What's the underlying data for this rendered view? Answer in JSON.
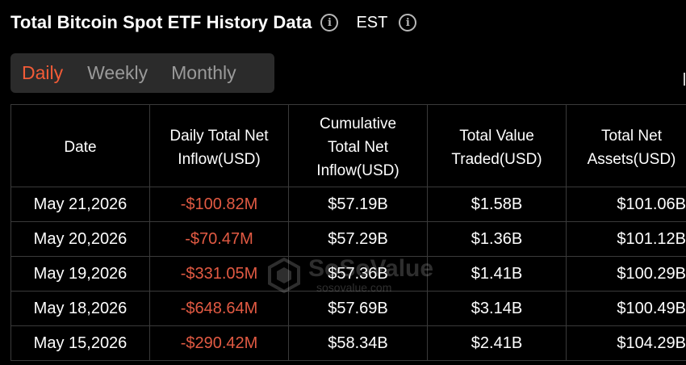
{
  "header": {
    "title": "Total Bitcoin Spot ETF History Data",
    "timezone": "EST"
  },
  "tabs": [
    {
      "label": "Daily",
      "active": true
    },
    {
      "label": "Weekly",
      "active": false
    },
    {
      "label": "Monthly",
      "active": false
    }
  ],
  "table": {
    "columns": [
      [
        "Date"
      ],
      [
        "Daily Total Net",
        "Inflow(USD)"
      ],
      [
        "Cumulative",
        "Total Net",
        "Inflow(USD)"
      ],
      [
        "Total Value",
        "Traded(USD)"
      ],
      [
        "Total Net",
        "Assets(USD)"
      ]
    ],
    "rows": [
      {
        "date": "May 21,2026",
        "daily_net_inflow": "-$100.82M",
        "cumulative_net_inflow": "$57.19B",
        "value_traded": "$1.58B",
        "net_assets": "$101.06B"
      },
      {
        "date": "May 20,2026",
        "daily_net_inflow": "-$70.47M",
        "cumulative_net_inflow": "$57.29B",
        "value_traded": "$1.36B",
        "net_assets": "$101.12B"
      },
      {
        "date": "May 19,2026",
        "daily_net_inflow": "-$331.05M",
        "cumulative_net_inflow": "$57.36B",
        "value_traded": "$1.41B",
        "net_assets": "$100.29B"
      },
      {
        "date": "May 18,2026",
        "daily_net_inflow": "-$648.64M",
        "cumulative_net_inflow": "$57.69B",
        "value_traded": "$3.14B",
        "net_assets": "$100.49B"
      },
      {
        "date": "May 15,2026",
        "daily_net_inflow": "-$290.42M",
        "cumulative_net_inflow": "$58.34B",
        "value_traded": "$2.41B",
        "net_assets": "$104.29B"
      }
    ]
  },
  "watermark": {
    "brand": "SoSoValue",
    "site": "sosovalue.com"
  },
  "colors": {
    "background": "#000000",
    "accent": "#f25b37",
    "negative": "#e25a43",
    "tab_bg": "#2b2b2b",
    "border": "#3a3a3a"
  },
  "icons": [
    "info-icon",
    "info-icon",
    "sosovalue-logo-icon"
  ]
}
